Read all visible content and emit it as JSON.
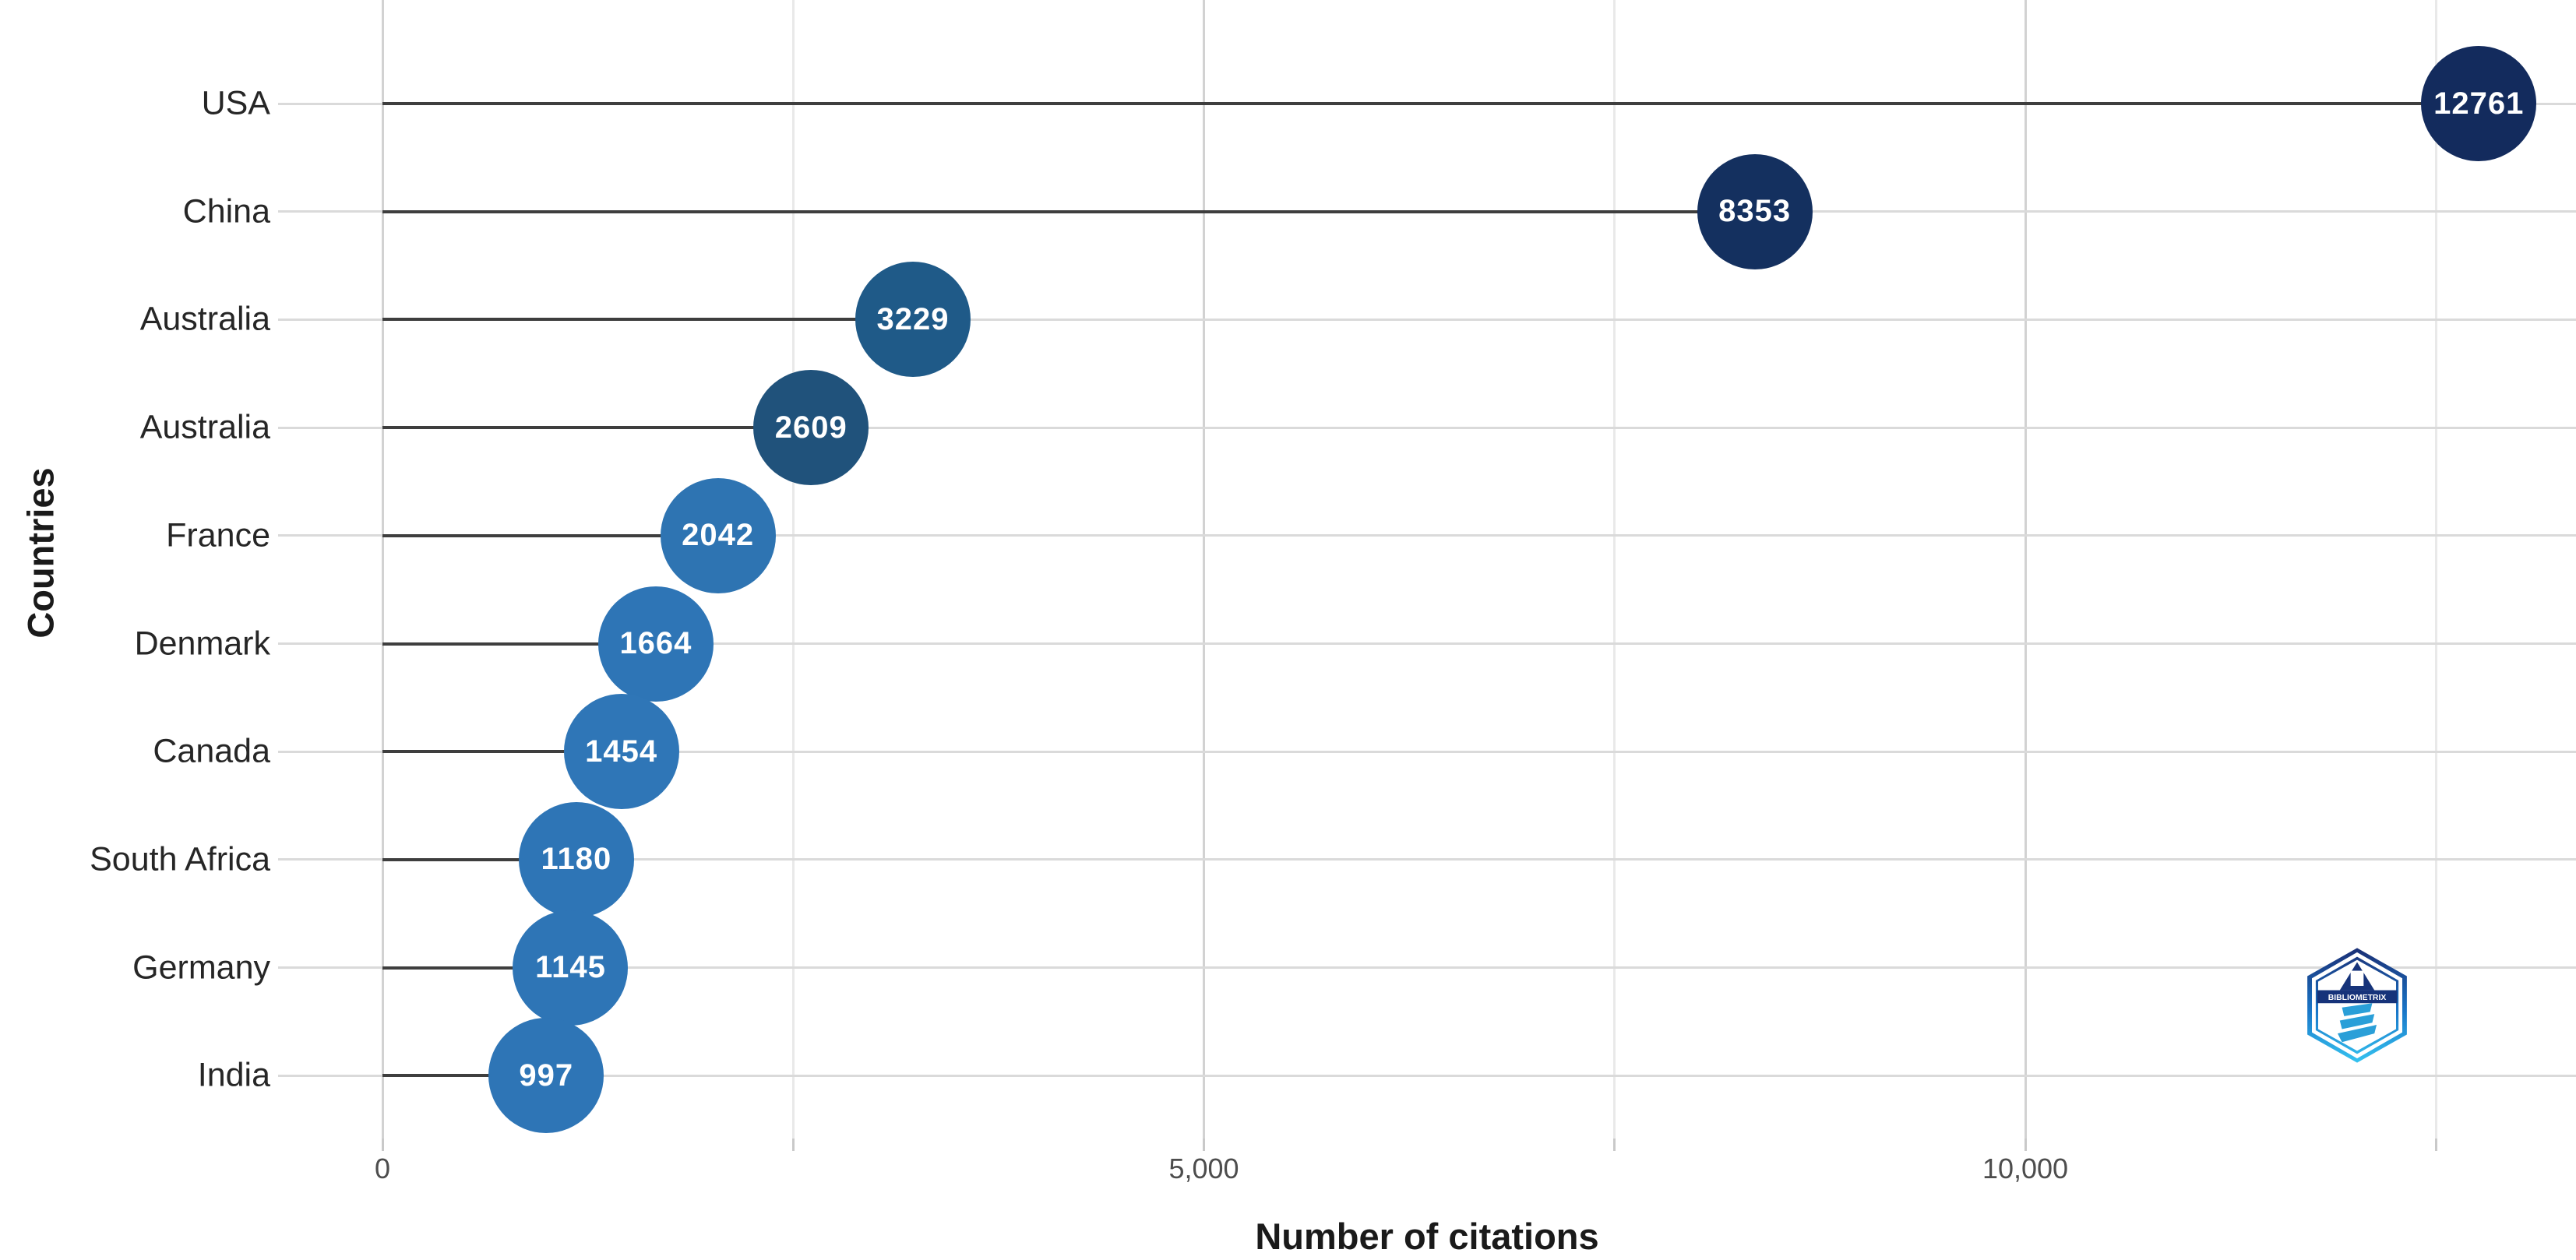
{
  "chart_data": {
    "type": "bar",
    "subtype": "lollipop-horizontal",
    "title": "",
    "xlabel": "Number of citations",
    "ylabel": "Countries",
    "categories": [
      "USA",
      "China",
      "Australia",
      "Australia",
      "France",
      "Denmark",
      "Canada",
      "South Africa",
      "Germany",
      "India"
    ],
    "values": [
      12761,
      8353,
      3229,
      2609,
      2042,
      1664,
      1454,
      1180,
      1145,
      997
    ],
    "point_colors": [
      "#132b5d",
      "#14305f",
      "#1f5a88",
      "#20527b",
      "#2e74b2",
      "#2e75b6",
      "#2f76b7",
      "#2e75b6",
      "#2e75b6",
      "#2e75b6"
    ],
    "value_label_color": "#ffffff",
    "xlim": [
      0,
      13350
    ],
    "x_major_ticks": [
      {
        "value": 0,
        "label": "0"
      },
      {
        "value": 5000,
        "label": "5,000"
      },
      {
        "value": 10000,
        "label": "10,000"
      }
    ],
    "x_minor_ticks": [
      2500,
      7500,
      12500
    ],
    "grid": "major-and-minor, light gray, no axis lines",
    "legend": "none"
  },
  "styles": {
    "stem_color": "#3e3e3e",
    "grid_major_color": "#d2d2d2",
    "grid_minor_color": "#e9e9e9",
    "grid_row_color": "#dadada",
    "tick_mark_color": "#c9c9c9",
    "background": "#ffffff"
  },
  "watermark": {
    "text": "BIBLIOMETRIX",
    "badge_top_color": "#1a2f75",
    "badge_mid_color": "#1976c8",
    "badge_bottom_color": "#35c3f0"
  }
}
